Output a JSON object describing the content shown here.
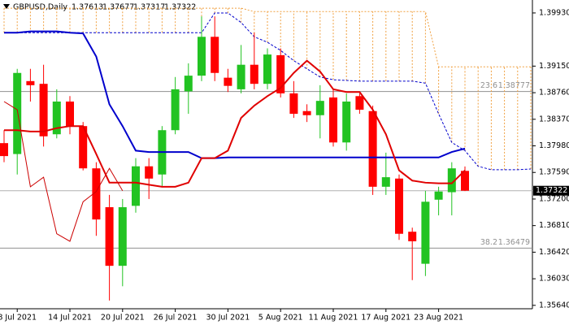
{
  "chart_data": {
    "type": "candlestick",
    "title": "GBPUSD,Daily",
    "categories": [
      null,
      "8 Jul 2021",
      null,
      null,
      null,
      "14 Jul 2021",
      null,
      null,
      null,
      "20 Jul 2021",
      null,
      null,
      null,
      "26 Jul 2021",
      null,
      null,
      null,
      "30 Jul 2021",
      null,
      null,
      null,
      "5 Aug 2021",
      null,
      null,
      null,
      "11 Aug 2021",
      null,
      null,
      null,
      "17 Aug 2021",
      null,
      null,
      null,
      "23 Aug 2021",
      null,
      null,
      null,
      null,
      null,
      null,
      null
    ],
    "open": [
      1.3802,
      1.3786,
      1.3893,
      1.3889,
      1.3815,
      1.3863,
      1.3827,
      1.3765,
      1.3708,
      1.3622,
      1.371,
      1.3768,
      1.3756,
      1.3821,
      1.3878,
      1.3901,
      1.3958,
      1.3898,
      1.3881,
      1.3917,
      1.3889,
      1.3931,
      1.3875,
      1.3849,
      1.3843,
      1.3869,
      1.3803,
      1.3871,
      1.3849,
      1.3738,
      1.375,
      1.3672,
      1.3625,
      1.3719,
      1.373,
      1.37613,
      null,
      null,
      null,
      null,
      null
    ],
    "high": [
      1.3821,
      1.3911,
      1.3911,
      1.3917,
      1.3881,
      1.3871,
      1.3833,
      1.3774,
      1.3726,
      1.372,
      1.378,
      1.378,
      1.3827,
      1.3899,
      1.3919,
      1.3988,
      1.3988,
      1.3911,
      1.3946,
      1.3964,
      1.3941,
      1.3941,
      1.3893,
      1.3859,
      1.3887,
      1.3881,
      1.3875,
      1.3875,
      1.3857,
      1.3788,
      1.3756,
      1.3678,
      1.3732,
      1.3738,
      1.3774,
      1.37677,
      null,
      null,
      null,
      null,
      null
    ],
    "low": [
      1.3774,
      1.3756,
      1.3863,
      1.3797,
      1.3809,
      1.3815,
      1.3762,
      1.3666,
      1.3571,
      1.3592,
      1.37,
      1.372,
      1.3738,
      1.3815,
      1.3845,
      1.3893,
      1.3893,
      1.3877,
      1.3875,
      1.3881,
      1.3881,
      1.3869,
      1.3839,
      1.3833,
      1.3809,
      1.3797,
      1.3791,
      1.3845,
      1.3726,
      1.3726,
      1.366,
      1.3601,
      1.3607,
      1.3696,
      1.3696,
      1.37317,
      null,
      null,
      null,
      null,
      null
    ],
    "close": [
      1.3783,
      1.3905,
      1.3887,
      1.3812,
      1.3863,
      1.3827,
      1.3765,
      1.369,
      1.3622,
      1.3708,
      1.3768,
      1.375,
      1.3821,
      1.3881,
      1.3901,
      1.3958,
      1.3905,
      1.3886,
      1.3917,
      1.3889,
      1.3932,
      1.3875,
      1.3845,
      1.3843,
      1.3864,
      1.3803,
      1.3863,
      1.3851,
      1.3738,
      1.3752,
      1.3669,
      1.3658,
      1.3716,
      1.3731,
      1.3765,
      1.37322,
      null,
      null,
      null,
      null,
      null
    ],
    "up_color": "#22c322",
    "down_color": "#ff0000",
    "series": [
      {
        "color": "#0000cc",
        "width": 2,
        "values": [
          1.3964,
          1.3964,
          1.3966,
          1.3966,
          1.3966,
          1.3964,
          1.3963,
          1.3929,
          1.3859,
          1.3827,
          1.3791,
          1.3789,
          1.3789,
          1.3789,
          1.3789,
          1.378,
          1.378,
          1.3781,
          1.3781,
          1.3781,
          1.3781,
          1.3781,
          1.3781,
          1.3781,
          1.3781,
          1.3781,
          1.3781,
          1.3781,
          1.3781,
          1.3781,
          1.3781,
          1.3781,
          1.3781,
          1.3781,
          1.3789,
          1.3794,
          null,
          null,
          null,
          null,
          null
        ]
      },
      {
        "color": "#e00000",
        "width": 2,
        "values": [
          1.3821,
          1.3821,
          1.3819,
          1.3819,
          1.3824,
          1.3827,
          1.3827,
          1.3786,
          1.3744,
          1.3744,
          1.3744,
          1.3741,
          1.3738,
          1.3738,
          1.3744,
          1.378,
          1.378,
          1.3791,
          1.3839,
          1.3857,
          1.3871,
          1.3883,
          1.3905,
          1.3923,
          1.3907,
          1.3881,
          1.3877,
          1.3877,
          1.3851,
          1.3815,
          1.3762,
          1.3747,
          1.3744,
          1.3743,
          1.3743,
          1.3762,
          null,
          null,
          null,
          null,
          null
        ]
      },
      {
        "color": "#cc0000",
        "width": 1,
        "values": [
          1.3863,
          1.3851,
          1.3738,
          1.3752,
          1.3669,
          1.3658,
          1.3716,
          1.3731,
          1.3765,
          1.37322,
          null,
          null,
          null,
          null,
          null,
          null,
          null,
          null,
          null,
          null,
          null,
          null,
          null,
          null,
          null,
          null,
          null,
          null,
          null,
          null,
          null,
          null,
          null,
          null,
          null,
          null,
          null,
          null,
          null,
          null,
          null
        ]
      }
    ],
    "cloud": {
      "color_a": "#0000cc",
      "color_b": "#f0a040",
      "a": [
        1.3964,
        1.3964,
        1.3964,
        1.3964,
        1.3964,
        1.3964,
        1.3964,
        1.3964,
        1.3964,
        1.3964,
        1.3964,
        1.3964,
        1.3964,
        1.3964,
        1.3964,
        1.3964,
        1.3993,
        1.3993,
        1.3979,
        1.3958,
        1.395,
        1.3938,
        1.3923,
        1.3911,
        1.3899,
        1.3895,
        1.3894,
        1.3893,
        1.3893,
        1.3893,
        1.3893,
        1.3893,
        1.389,
        1.3845,
        1.3803,
        1.3791,
        1.3768,
        1.3763,
        1.3763,
        1.3763,
        1.3764
      ],
      "b": [
        1.4,
        1.4,
        1.4,
        1.4,
        1.4,
        1.4,
        1.4,
        1.4,
        1.4,
        1.4,
        1.4,
        1.4,
        1.4,
        1.4,
        1.4,
        1.4,
        1.4,
        1.4,
        1.4,
        1.3995,
        1.3995,
        1.3995,
        1.3995,
        1.3995,
        1.3995,
        1.3995,
        1.3995,
        1.3995,
        1.3995,
        1.3995,
        1.3995,
        1.3995,
        1.3995,
        1.3914,
        1.3914,
        1.3914,
        1.3914,
        1.3914,
        1.3914,
        1.3914,
        1.3914
      ]
    },
    "levels": [
      {
        "label": "23.6",
        "value": 1.38777
      },
      {
        "label": "38.2",
        "value": 1.36479
      }
    ],
    "level_color": "#909090",
    "last_price_line": true,
    "ylim": [
      1.3559,
      1.4012
    ],
    "yticks": [
      {
        "value": 1.3993,
        "label": "1.39930"
      },
      {
        "value": 1.3915,
        "label": "1.39150"
      },
      {
        "value": 1.3876,
        "label": "1.38760"
      },
      {
        "value": 1.3837,
        "label": "1.38370"
      },
      {
        "value": 1.3798,
        "label": "1.37980"
      },
      {
        "value": 1.3759,
        "label": "1.37590"
      },
      {
        "value": 1.372,
        "label": "1.37200"
      },
      {
        "value": 1.3681,
        "label": "1.36810"
      },
      {
        "value": 1.3642,
        "label": "1.36420"
      },
      {
        "value": 1.3603,
        "label": "1.36030"
      },
      {
        "value": 1.3564,
        "label": "1.35640"
      }
    ],
    "grid": false
  }
}
